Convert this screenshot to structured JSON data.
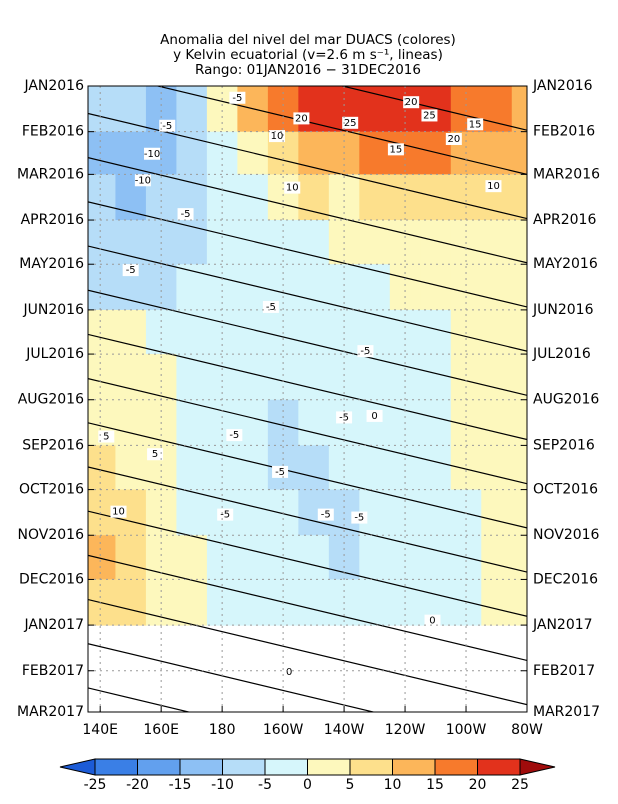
{
  "chart_data": {
    "type": "hovmoller",
    "title": [
      "Anomalia del nivel del mar DUACS (colores)",
      "y Kelvin ecuatorial (v=2.6 m s⁻¹, lineas)",
      "Rango: 01JAN2016 − 31DEC2016"
    ],
    "kelvin_speed": 2.6,
    "xlim": [
      136,
      280
    ],
    "xticks": [
      {
        "value": 140,
        "label": "140E"
      },
      {
        "value": 160,
        "label": "160E"
      },
      {
        "value": 180,
        "label": "180"
      },
      {
        "value": 200,
        "label": "160W"
      },
      {
        "value": 220,
        "label": "140W"
      },
      {
        "value": 240,
        "label": "120W"
      },
      {
        "value": 260,
        "label": "100W"
      },
      {
        "value": 280,
        "label": "80W"
      }
    ],
    "ylim": [
      0,
      425
    ],
    "yticks": [
      {
        "value": 0,
        "label": "JAN2016"
      },
      {
        "value": 31,
        "label": "FEB2016"
      },
      {
        "value": 60,
        "label": "MAR2016"
      },
      {
        "value": 91,
        "label": "APR2016"
      },
      {
        "value": 121,
        "label": "MAY2016"
      },
      {
        "value": 152,
        "label": "JUN2016"
      },
      {
        "value": 182,
        "label": "JUL2016"
      },
      {
        "value": 213,
        "label": "AUG2016"
      },
      {
        "value": 244,
        "label": "SEP2016"
      },
      {
        "value": 274,
        "label": "OCT2016"
      },
      {
        "value": 305,
        "label": "NOV2016"
      },
      {
        "value": 335,
        "label": "DEC2016"
      },
      {
        "value": 366,
        "label": "JAN2017"
      },
      {
        "value": 397,
        "label": "FEB2017"
      },
      {
        "value": 425,
        "label": "MAR2017"
      }
    ],
    "grid": true,
    "lons": [
      140,
      150,
      160,
      170,
      180,
      190,
      200,
      210,
      220,
      230,
      240,
      250,
      260,
      270,
      280
    ],
    "field": [
      [
        -5,
        -8,
        -10,
        -5,
        5,
        15,
        20,
        22,
        25,
        25,
        25,
        22,
        20,
        18,
        15
      ],
      [
        -10,
        -12,
        -10,
        -8,
        -2,
        3,
        8,
        12,
        15,
        18,
        20,
        18,
        15,
        15,
        12
      ],
      [
        -8,
        -10,
        -8,
        -6,
        -2,
        0,
        3,
        6,
        5,
        6,
        8,
        10,
        10,
        8,
        6
      ],
      [
        -8,
        -8,
        -6,
        -5,
        -3,
        -2,
        -1,
        0,
        1,
        1,
        2,
        3,
        3,
        2,
        2
      ],
      [
        -5,
        -6,
        -6,
        -4,
        -3,
        -3,
        -2,
        -1,
        -1,
        0,
        1,
        1,
        2,
        1,
        1
      ],
      [
        2,
        1,
        -1,
        -2,
        -3,
        -3,
        -4,
        -3,
        -2,
        -1,
        0,
        0,
        1,
        1,
        1
      ],
      [
        3,
        2,
        1,
        -1,
        -2,
        -3,
        -4,
        -4,
        -3,
        -2,
        -1,
        0,
        1,
        1,
        2
      ],
      [
        4,
        3,
        1,
        -1,
        -3,
        -4,
        -5,
        -4,
        -3,
        -2,
        -1,
        0,
        1,
        2,
        2
      ],
      [
        6,
        5,
        3,
        -1,
        -3,
        -4,
        -5,
        -5,
        -3,
        -2,
        -1,
        0,
        1,
        1,
        2
      ],
      [
        8,
        6,
        3,
        0,
        -2,
        -3,
        -4,
        -5,
        -5,
        -4,
        -2,
        -1,
        0,
        1,
        1
      ],
      [
        12,
        8,
        4,
        1,
        -2,
        -3,
        -4,
        -4,
        -5,
        -4,
        -3,
        -1,
        0,
        1,
        2
      ],
      [
        10,
        7,
        4,
        2,
        0,
        -1,
        -2,
        -2,
        -2,
        -3,
        -2,
        -1,
        0,
        1,
        1
      ]
    ],
    "levels": [
      -25,
      -20,
      -15,
      -10,
      -5,
      0,
      5,
      10,
      15,
      20,
      25
    ],
    "colors": [
      "#1c5bd6",
      "#3a7fe6",
      "#62a0ee",
      "#8dc0f4",
      "#b6ddf8",
      "#d6f6fb",
      "#fdf8bd",
      "#fde08c",
      "#fcb65a",
      "#f77a2c",
      "#e2321c",
      "#a00c0c"
    ],
    "contour_labels": [
      {
        "lon": 185,
        "day": 8,
        "value": -5
      },
      {
        "lon": 162,
        "day": 27,
        "value": -5
      },
      {
        "lon": 206,
        "day": 22,
        "value": 20
      },
      {
        "lon": 242,
        "day": 11,
        "value": 20
      },
      {
        "lon": 222,
        "day": 25,
        "value": 25
      },
      {
        "lon": 248,
        "day": 20,
        "value": 25
      },
      {
        "lon": 263,
        "day": 26,
        "value": 15
      },
      {
        "lon": 256,
        "day": 36,
        "value": 20
      },
      {
        "lon": 198,
        "day": 34,
        "value": 10
      },
      {
        "lon": 237,
        "day": 43,
        "value": 15
      },
      {
        "lon": 157,
        "day": 46,
        "value": -10
      },
      {
        "lon": 154,
        "day": 64,
        "value": -10
      },
      {
        "lon": 203,
        "day": 69,
        "value": 10
      },
      {
        "lon": 269,
        "day": 68,
        "value": 10
      },
      {
        "lon": 168,
        "day": 87,
        "value": -5
      },
      {
        "lon": 150,
        "day": 125,
        "value": -5
      },
      {
        "lon": 196,
        "day": 150,
        "value": -5
      },
      {
        "lon": 227,
        "day": 180,
        "value": -5
      },
      {
        "lon": 220,
        "day": 225,
        "value": -5
      },
      {
        "lon": 184,
        "day": 237,
        "value": -5
      },
      {
        "lon": 199,
        "day": 262,
        "value": -5
      },
      {
        "lon": 214,
        "day": 291,
        "value": -5
      },
      {
        "lon": 225,
        "day": 293,
        "value": -5
      },
      {
        "lon": 181,
        "day": 291,
        "value": -5
      },
      {
        "lon": 146,
        "day": 289,
        "value": 10
      },
      {
        "lon": 142,
        "day": 238,
        "value": 5
      },
      {
        "lon": 158,
        "day": 250,
        "value": 5
      },
      {
        "lon": 202,
        "day": 398,
        "value": 0
      },
      {
        "lon": 249,
        "day": 363,
        "value": 0
      },
      {
        "lon": 230,
        "day": 224,
        "value": 0
      }
    ]
  }
}
